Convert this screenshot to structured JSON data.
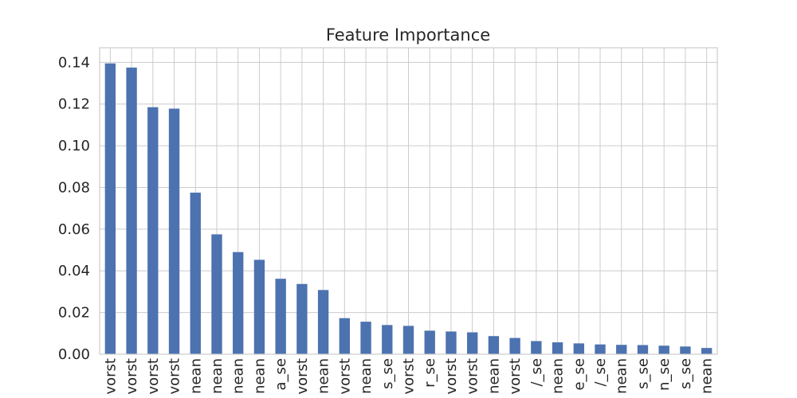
{
  "chart_data": {
    "type": "bar",
    "title": "Feature Importance",
    "xlabel": "",
    "ylabel": "",
    "ylim": [
      0,
      0.147
    ],
    "yticks": [
      0.0,
      0.02,
      0.04,
      0.06,
      0.08,
      0.1,
      0.12,
      0.14
    ],
    "ytick_labels": [
      "0.00",
      "0.02",
      "0.04",
      "0.06",
      "0.08",
      "0.10",
      "0.12",
      "0.14"
    ],
    "grid": true,
    "bar_color": "#4c72b0",
    "categories": [
      "vorst",
      "vorst",
      "vorst",
      "vorst",
      "nean",
      "nean",
      "nean",
      "nean",
      "a_se",
      "vorst",
      "nean",
      "vorst",
      "nean",
      "s_se",
      "vorst",
      "r_se",
      "vorst",
      "vorst",
      "nean",
      "vorst",
      "/_se",
      "nean",
      "e_se",
      "/_se",
      "nean",
      "s_se",
      "n_se",
      "s_se",
      "nean"
    ],
    "values": [
      0.1395,
      0.1375,
      0.1185,
      0.1178,
      0.0775,
      0.0575,
      0.049,
      0.0453,
      0.0362,
      0.0337,
      0.0308,
      0.0173,
      0.0156,
      0.014,
      0.0136,
      0.0113,
      0.0109,
      0.0105,
      0.0087,
      0.0078,
      0.0063,
      0.0057,
      0.0052,
      0.0047,
      0.0045,
      0.0044,
      0.0041,
      0.0037,
      0.003
    ]
  }
}
